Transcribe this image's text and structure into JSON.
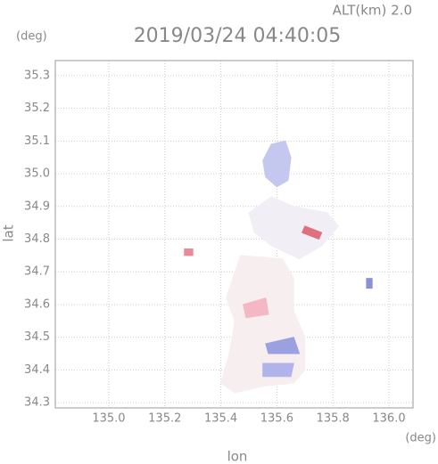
{
  "chart_data": {
    "type": "map",
    "title": "2019/03/24 04:40:05",
    "annotation": "ALT(km) 2.0",
    "xlabel": "lon",
    "ylabel": "lat",
    "x_unit": "(deg)",
    "y_unit": "(deg)",
    "xlim": [
      134.809,
      136.086
    ],
    "ylim": [
      34.284,
      35.346
    ],
    "xticks": [
      {
        "value": 135,
        "label": "135.0"
      },
      135.2,
      135.4,
      135.6,
      135.8,
      {
        "value": 136,
        "label": "136.0"
      }
    ],
    "yticks": [
      34.3,
      34.4,
      34.5,
      34.6,
      34.7,
      34.8,
      34.9,
      {
        "value": 35,
        "label": "35.0"
      },
      35.1,
      35.2,
      35.3
    ],
    "grid": true,
    "patches": [
      {
        "color": "#f1eef6",
        "x": [
          135.5,
          135.58,
          135.66,
          135.78,
          135.82,
          135.76,
          135.68,
          135.58,
          135.52
        ],
        "y": [
          34.88,
          34.93,
          34.9,
          34.88,
          34.84,
          34.78,
          34.74,
          34.78,
          34.82
        ]
      },
      {
        "color": "#f7eef0",
        "x": [
          135.47,
          135.62,
          135.66,
          135.66,
          135.7,
          135.7,
          135.66,
          135.55,
          135.45,
          135.4,
          135.43,
          135.45,
          135.42,
          135.45
        ],
        "y": [
          34.75,
          34.74,
          34.68,
          34.58,
          34.5,
          34.4,
          34.36,
          34.35,
          34.33,
          34.36,
          34.45,
          34.55,
          34.62,
          34.7
        ]
      },
      {
        "color": "#c4c8ee",
        "x": [
          135.58,
          135.63,
          135.65,
          135.64,
          135.6,
          135.56,
          135.55
        ],
        "y": [
          35.09,
          35.1,
          35.05,
          34.98,
          34.96,
          34.99,
          35.04
        ]
      },
      {
        "color": "#e07080",
        "x": [
          135.7,
          135.76,
          135.75,
          135.69
        ],
        "y": [
          34.84,
          34.82,
          34.8,
          34.82
        ]
      },
      {
        "color": "#9aa0e0",
        "x": [
          135.56,
          135.66,
          135.68,
          135.57
        ],
        "y": [
          34.48,
          34.5,
          34.45,
          34.45
        ]
      },
      {
        "color": "#b0b4ea",
        "x": [
          135.55,
          135.66,
          135.65,
          135.55
        ],
        "y": [
          34.42,
          34.42,
          34.38,
          34.38
        ]
      },
      {
        "color": "#f4b8c4",
        "x": [
          135.48,
          135.56,
          135.57,
          135.49
        ],
        "y": [
          34.6,
          34.62,
          34.57,
          34.56
        ]
      },
      {
        "color": "#8890d8",
        "x": [
          135.92,
          135.94,
          135.94,
          135.92
        ],
        "y": [
          34.68,
          34.68,
          34.65,
          34.65
        ]
      },
      {
        "color": "#e88a98",
        "x": [
          135.27,
          135.3,
          135.3,
          135.27
        ],
        "y": [
          34.77,
          34.77,
          34.75,
          34.75
        ]
      }
    ]
  }
}
